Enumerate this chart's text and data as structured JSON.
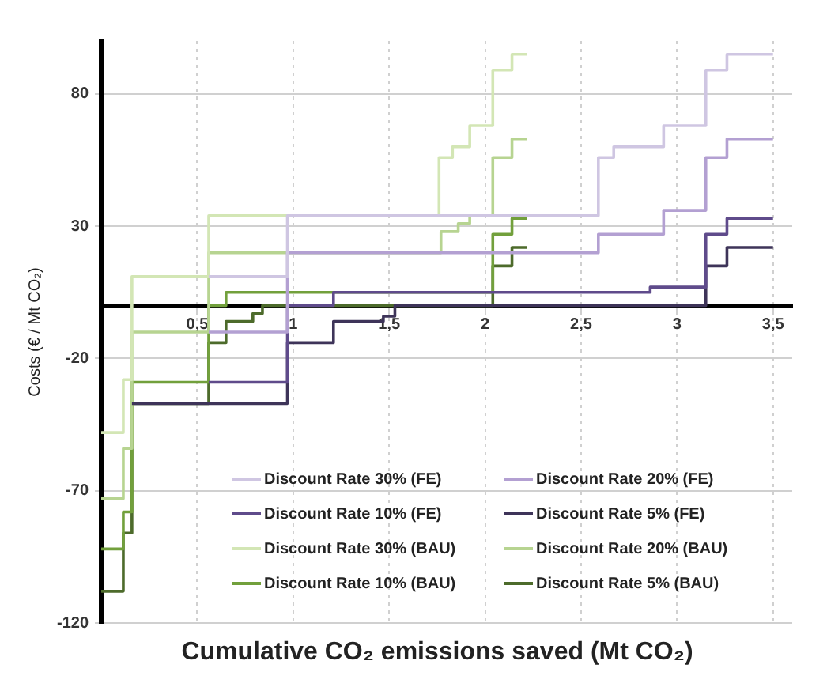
{
  "chart_data": {
    "type": "step",
    "xlabel": "Cumulative CO₂ emissions saved (Mt CO₂)",
    "ylabel": "Costs (€ / Mt CO₂)",
    "xlim": [
      0,
      3.6
    ],
    "xticks": [
      {
        "value": 0.5,
        "label": "0,5"
      },
      1,
      {
        "value": 1.5,
        "label": "1,5"
      },
      2,
      {
        "value": 2.5,
        "label": "2,5"
      },
      3,
      {
        "value": 3.5,
        "label": "3,5"
      }
    ],
    "ylim": [
      -120,
      100
    ],
    "yticks": [
      -120,
      -70,
      -20,
      30,
      80
    ],
    "grid": true,
    "legend": "bottom right",
    "marker": "none",
    "line_style": "solid",
    "series": [
      {
        "name": "Discount Rate 30% (FE)",
        "color": "#cfc6e2",
        "x": [
          0.56,
          0.97,
          2.59,
          2.67,
          2.93,
          3.15,
          3.26,
          3.5
        ],
        "values": [
          11,
          34,
          56,
          60,
          68,
          89,
          95,
          95
        ]
      },
      {
        "name": "Discount Rate 20% (FE)",
        "color": "#b3a0d2",
        "x": [
          0.56,
          0.97,
          2.59,
          2.93,
          3.15,
          3.26,
          3.5
        ],
        "values": [
          -10,
          20,
          27,
          36,
          56,
          63,
          63
        ]
      },
      {
        "name": "Discount Rate 10% (FE)",
        "color": "#5f4b8b",
        "x": [
          0.56,
          0.97,
          1.21,
          2.86,
          3.15,
          3.26,
          3.5
        ],
        "values": [
          -29,
          0,
          5,
          7,
          27,
          33,
          33
        ]
      },
      {
        "name": "Discount Rate 5% (FE)",
        "color": "#3e3459",
        "x": [
          0.16,
          0.97,
          1.21,
          1.47,
          1.53,
          3.15,
          3.26,
          3.5
        ],
        "values": [
          -37,
          -14,
          -6,
          -4,
          0,
          15,
          22,
          22
        ]
      },
      {
        "name": "Discount Rate 30% (BAU)",
        "color": "#d3e6b5",
        "x": [
          0,
          0.115,
          0.16,
          0.56,
          1.76,
          1.83,
          1.92,
          2.04,
          2.14,
          2.22
        ],
        "values": [
          -48,
          -28,
          11,
          34,
          56,
          60,
          68,
          89,
          95,
          95
        ]
      },
      {
        "name": "Discount Rate 20% (BAU)",
        "color": "#b7d491",
        "x": [
          0,
          0.115,
          0.16,
          0.56,
          1.77,
          1.86,
          1.92,
          2.04,
          2.14,
          2.22
        ],
        "values": [
          -73,
          -54,
          -10,
          20,
          28,
          31,
          34,
          56,
          63,
          63
        ]
      },
      {
        "name": "Discount Rate 10% (BAU)",
        "color": "#72a03c",
        "x": [
          0,
          0.115,
          0.16,
          0.56,
          0.65,
          2.04,
          2.14,
          2.22
        ],
        "values": [
          -92,
          -78,
          -29,
          0,
          5,
          27,
          33,
          33
        ]
      },
      {
        "name": "Discount Rate 5% (BAU)",
        "color": "#4d6b2b",
        "x": [
          0,
          0.115,
          0.16,
          0.56,
          0.65,
          0.79,
          0.84,
          2.04,
          2.14,
          2.22
        ],
        "values": [
          -108,
          -86,
          -37,
          -14,
          -6,
          -3,
          0,
          15,
          22,
          22
        ]
      }
    ]
  }
}
